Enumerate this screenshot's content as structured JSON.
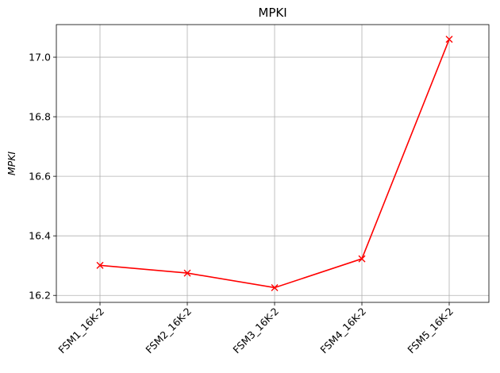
{
  "chart_data": {
    "type": "line",
    "title": "MPKI",
    "xlabel": "",
    "ylabel": "MPKI",
    "categories": [
      "FSM1_16K-2",
      "FSM2_16K-2",
      "FSM3_16K-2",
      "FSM4_16K-2",
      "FSM5_16K-2"
    ],
    "series": [
      {
        "values": [
          16.301,
          16.275,
          16.226,
          16.323,
          17.06
        ],
        "color": "#ff0000",
        "marker": "x"
      }
    ],
    "yticks": [
      "16.2",
      "16.4",
      "16.6",
      "16.8",
      "17.0"
    ],
    "ylim": [
      16.1766,
      17.1094
    ],
    "grid": true,
    "legend": "none"
  }
}
